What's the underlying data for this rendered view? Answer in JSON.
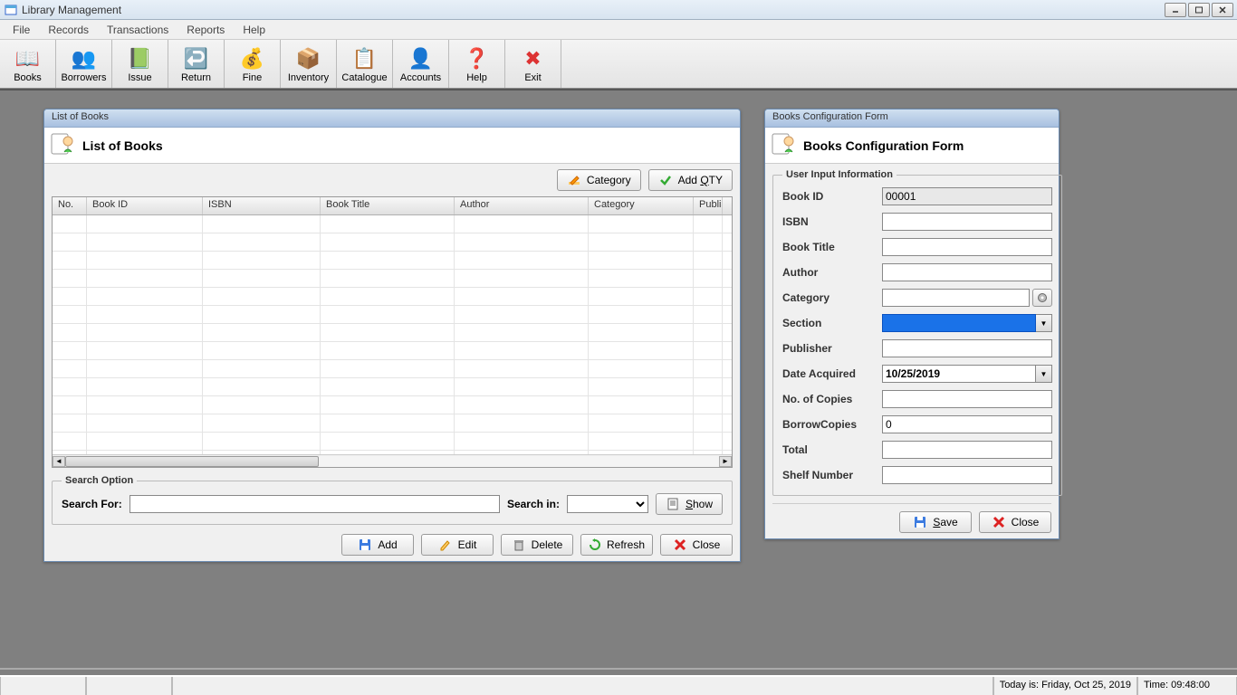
{
  "window": {
    "title": "Library Management"
  },
  "menubar": [
    "File",
    "Records",
    "Transactions",
    "Reports",
    "Help"
  ],
  "toolbar": [
    {
      "label": "Books",
      "icon": "📖",
      "bg": "#3d8"
    },
    {
      "label": "Borrowers",
      "icon": "👥",
      "bg": "#c66"
    },
    {
      "label": "Issue",
      "icon": "📗",
      "bg": "#fa3"
    },
    {
      "label": "Return",
      "icon": "↩️",
      "bg": "#9cf"
    },
    {
      "label": "Fine",
      "icon": "💰",
      "bg": "#7c4"
    },
    {
      "label": "Inventory",
      "icon": "📦",
      "bg": "#c96"
    },
    {
      "label": "Catalogue",
      "icon": "📋",
      "bg": "#79c"
    },
    {
      "label": "Accounts",
      "icon": "👤",
      "bg": "#fa3"
    },
    {
      "label": "Help",
      "icon": "❓",
      "bg": "#39f"
    },
    {
      "label": "Exit",
      "icon": "✖",
      "bg": "#d33"
    }
  ],
  "list_window": {
    "title": "List of Books",
    "panel_title": "List of Books",
    "category_btn": "Category",
    "addqty_pre": "Add ",
    "addqty_u": "Q",
    "addqty_post": "TY",
    "columns": [
      {
        "label": "No.",
        "width": 38
      },
      {
        "label": "Book ID",
        "width": 128
      },
      {
        "label": "ISBN",
        "width": 130
      },
      {
        "label": "Book Title",
        "width": 148
      },
      {
        "label": "Author",
        "width": 148
      },
      {
        "label": "Category",
        "width": 116
      },
      {
        "label": "Publis",
        "width": 32
      }
    ],
    "rows": 14,
    "search": {
      "legend": "Search Option",
      "for_label": "Search For:",
      "in_label": "Search in:",
      "show_u": "S",
      "show_post": "how"
    },
    "actions": {
      "add": "Add",
      "edit": "Edit",
      "delete": "Delete",
      "refresh": "Refresh",
      "close": "Close"
    }
  },
  "config_window": {
    "title": "Books Configuration Form",
    "panel_title": "Books Configuration Form",
    "legend": "User Input Information",
    "fields": {
      "book_id": {
        "label": "Book ID",
        "value": "00001",
        "readonly": true
      },
      "isbn": {
        "label": "ISBN",
        "value": ""
      },
      "book_title": {
        "label": "Book Title",
        "value": ""
      },
      "author": {
        "label": "Author",
        "value": ""
      },
      "category": {
        "label": "Category",
        "value": ""
      },
      "section": {
        "label": "Section",
        "value": ""
      },
      "publisher": {
        "label": "Publisher",
        "value": ""
      },
      "date_acquired": {
        "label": "Date Acquired",
        "value": "10/25/2019"
      },
      "no_copies": {
        "label": "No. of Copies",
        "value": ""
      },
      "borrow_copies": {
        "label": "BorrowCopies",
        "value": "0"
      },
      "total": {
        "label": "Total",
        "value": ""
      },
      "shelf": {
        "label": "Shelf Number",
        "value": ""
      }
    },
    "save_u": "S",
    "save_post": "ave",
    "close": "Close"
  },
  "statusbar": {
    "today": "Today is: Friday, Oct 25, 2019",
    "time": "Time: 09:48:00"
  },
  "colors": {
    "title_grad_top": "#e8f0f8",
    "title_grad_bot": "#d8e4f0",
    "child_title_top": "#d0e0f0",
    "child_title_bot": "#a8c0e0",
    "mdi_bg": "#808080",
    "section_hl": "#1a72e8"
  }
}
